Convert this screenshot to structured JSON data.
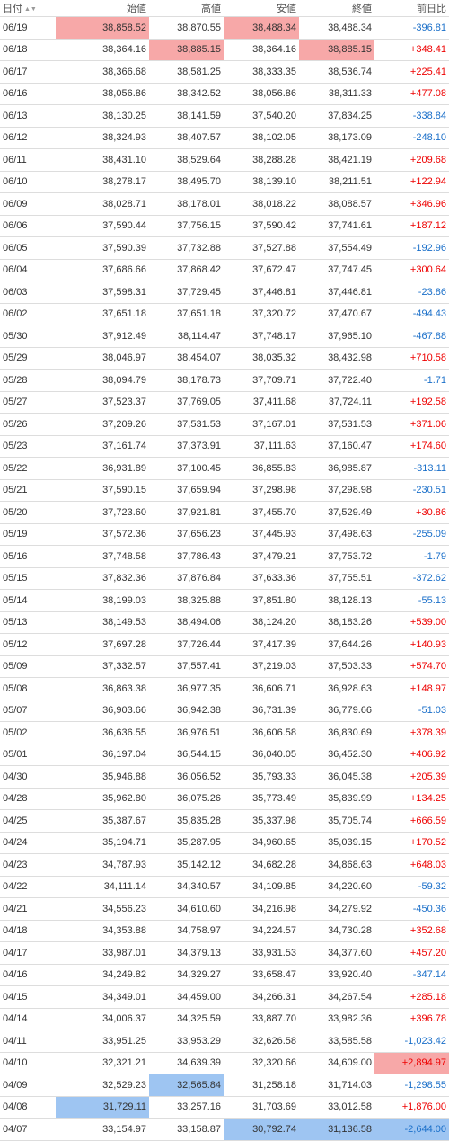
{
  "header": {
    "date": "日付",
    "sort_icon": "sort-asc-desc-icon",
    "open": "始値",
    "high": "高値",
    "low": "安値",
    "close": "終値",
    "change": "前日比"
  },
  "colors": {
    "up": "#ee0000",
    "down": "#1a6fc9",
    "highlight_high": "#f7a8a8",
    "highlight_low": "#9ec5f2"
  },
  "rows": [
    {
      "date": "06/19",
      "open": "38,858.52",
      "high": "38,870.55",
      "low": "38,488.34",
      "close": "38,488.34",
      "change": "-396.81",
      "dir": "down",
      "hl": [
        "open",
        "low"
      ],
      "hlColor": "hi"
    },
    {
      "date": "06/18",
      "open": "38,364.16",
      "high": "38,885.15",
      "low": "38,364.16",
      "close": "38,885.15",
      "change": "+348.41",
      "dir": "up",
      "hl": [
        "high",
        "close"
      ],
      "hlColor": "hi"
    },
    {
      "date": "06/17",
      "open": "38,366.68",
      "high": "38,581.25",
      "low": "38,333.35",
      "close": "38,536.74",
      "change": "+225.41",
      "dir": "up"
    },
    {
      "date": "06/16",
      "open": "38,056.86",
      "high": "38,342.52",
      "low": "38,056.86",
      "close": "38,311.33",
      "change": "+477.08",
      "dir": "up"
    },
    {
      "date": "06/13",
      "open": "38,130.25",
      "high": "38,141.59",
      "low": "37,540.20",
      "close": "37,834.25",
      "change": "-338.84",
      "dir": "down"
    },
    {
      "date": "06/12",
      "open": "38,324.93",
      "high": "38,407.57",
      "low": "38,102.05",
      "close": "38,173.09",
      "change": "-248.10",
      "dir": "down"
    },
    {
      "date": "06/11",
      "open": "38,431.10",
      "high": "38,529.64",
      "low": "38,288.28",
      "close": "38,421.19",
      "change": "+209.68",
      "dir": "up"
    },
    {
      "date": "06/10",
      "open": "38,278.17",
      "high": "38,495.70",
      "low": "38,139.10",
      "close": "38,211.51",
      "change": "+122.94",
      "dir": "up"
    },
    {
      "date": "06/09",
      "open": "38,028.71",
      "high": "38,178.01",
      "low": "38,018.22",
      "close": "38,088.57",
      "change": "+346.96",
      "dir": "up"
    },
    {
      "date": "06/06",
      "open": "37,590.44",
      "high": "37,756.15",
      "low": "37,590.42",
      "close": "37,741.61",
      "change": "+187.12",
      "dir": "up"
    },
    {
      "date": "06/05",
      "open": "37,590.39",
      "high": "37,732.88",
      "low": "37,527.88",
      "close": "37,554.49",
      "change": "-192.96",
      "dir": "down"
    },
    {
      "date": "06/04",
      "open": "37,686.66",
      "high": "37,868.42",
      "low": "37,672.47",
      "close": "37,747.45",
      "change": "+300.64",
      "dir": "up"
    },
    {
      "date": "06/03",
      "open": "37,598.31",
      "high": "37,729.45",
      "low": "37,446.81",
      "close": "37,446.81",
      "change": "-23.86",
      "dir": "down"
    },
    {
      "date": "06/02",
      "open": "37,651.18",
      "high": "37,651.18",
      "low": "37,320.72",
      "close": "37,470.67",
      "change": "-494.43",
      "dir": "down"
    },
    {
      "date": "05/30",
      "open": "37,912.49",
      "high": "38,114.47",
      "low": "37,748.17",
      "close": "37,965.10",
      "change": "-467.88",
      "dir": "down"
    },
    {
      "date": "05/29",
      "open": "38,046.97",
      "high": "38,454.07",
      "low": "38,035.32",
      "close": "38,432.98",
      "change": "+710.58",
      "dir": "up"
    },
    {
      "date": "05/28",
      "open": "38,094.79",
      "high": "38,178.73",
      "low": "37,709.71",
      "close": "37,722.40",
      "change": "-1.71",
      "dir": "down"
    },
    {
      "date": "05/27",
      "open": "37,523.37",
      "high": "37,769.05",
      "low": "37,411.68",
      "close": "37,724.11",
      "change": "+192.58",
      "dir": "up"
    },
    {
      "date": "05/26",
      "open": "37,209.26",
      "high": "37,531.53",
      "low": "37,167.01",
      "close": "37,531.53",
      "change": "+371.06",
      "dir": "up"
    },
    {
      "date": "05/23",
      "open": "37,161.74",
      "high": "37,373.91",
      "low": "37,111.63",
      "close": "37,160.47",
      "change": "+174.60",
      "dir": "up"
    },
    {
      "date": "05/22",
      "open": "36,931.89",
      "high": "37,100.45",
      "low": "36,855.83",
      "close": "36,985.87",
      "change": "-313.11",
      "dir": "down"
    },
    {
      "date": "05/21",
      "open": "37,590.15",
      "high": "37,659.94",
      "low": "37,298.98",
      "close": "37,298.98",
      "change": "-230.51",
      "dir": "down"
    },
    {
      "date": "05/20",
      "open": "37,723.60",
      "high": "37,921.81",
      "low": "37,455.70",
      "close": "37,529.49",
      "change": "+30.86",
      "dir": "up"
    },
    {
      "date": "05/19",
      "open": "37,572.36",
      "high": "37,656.23",
      "low": "37,445.93",
      "close": "37,498.63",
      "change": "-255.09",
      "dir": "down"
    },
    {
      "date": "05/16",
      "open": "37,748.58",
      "high": "37,786.43",
      "low": "37,479.21",
      "close": "37,753.72",
      "change": "-1.79",
      "dir": "down"
    },
    {
      "date": "05/15",
      "open": "37,832.36",
      "high": "37,876.84",
      "low": "37,633.36",
      "close": "37,755.51",
      "change": "-372.62",
      "dir": "down"
    },
    {
      "date": "05/14",
      "open": "38,199.03",
      "high": "38,325.88",
      "low": "37,851.80",
      "close": "38,128.13",
      "change": "-55.13",
      "dir": "down"
    },
    {
      "date": "05/13",
      "open": "38,149.53",
      "high": "38,494.06",
      "low": "38,124.20",
      "close": "38,183.26",
      "change": "+539.00",
      "dir": "up"
    },
    {
      "date": "05/12",
      "open": "37,697.28",
      "high": "37,726.44",
      "low": "37,417.39",
      "close": "37,644.26",
      "change": "+140.93",
      "dir": "up"
    },
    {
      "date": "05/09",
      "open": "37,332.57",
      "high": "37,557.41",
      "low": "37,219.03",
      "close": "37,503.33",
      "change": "+574.70",
      "dir": "up"
    },
    {
      "date": "05/08",
      "open": "36,863.38",
      "high": "36,977.35",
      "low": "36,606.71",
      "close": "36,928.63",
      "change": "+148.97",
      "dir": "up"
    },
    {
      "date": "05/07",
      "open": "36,903.66",
      "high": "36,942.38",
      "low": "36,731.39",
      "close": "36,779.66",
      "change": "-51.03",
      "dir": "down"
    },
    {
      "date": "05/02",
      "open": "36,636.55",
      "high": "36,976.51",
      "low": "36,606.58",
      "close": "36,830.69",
      "change": "+378.39",
      "dir": "up"
    },
    {
      "date": "05/01",
      "open": "36,197.04",
      "high": "36,544.15",
      "low": "36,040.05",
      "close": "36,452.30",
      "change": "+406.92",
      "dir": "up"
    },
    {
      "date": "04/30",
      "open": "35,946.88",
      "high": "36,056.52",
      "low": "35,793.33",
      "close": "36,045.38",
      "change": "+205.39",
      "dir": "up"
    },
    {
      "date": "04/28",
      "open": "35,962.80",
      "high": "36,075.26",
      "low": "35,773.49",
      "close": "35,839.99",
      "change": "+134.25",
      "dir": "up"
    },
    {
      "date": "04/25",
      "open": "35,387.67",
      "high": "35,835.28",
      "low": "35,337.98",
      "close": "35,705.74",
      "change": "+666.59",
      "dir": "up"
    },
    {
      "date": "04/24",
      "open": "35,194.71",
      "high": "35,287.95",
      "low": "34,960.65",
      "close": "35,039.15",
      "change": "+170.52",
      "dir": "up"
    },
    {
      "date": "04/23",
      "open": "34,787.93",
      "high": "35,142.12",
      "low": "34,682.28",
      "close": "34,868.63",
      "change": "+648.03",
      "dir": "up"
    },
    {
      "date": "04/22",
      "open": "34,111.14",
      "high": "34,340.57",
      "low": "34,109.85",
      "close": "34,220.60",
      "change": "-59.32",
      "dir": "down"
    },
    {
      "date": "04/21",
      "open": "34,556.23",
      "high": "34,610.60",
      "low": "34,216.98",
      "close": "34,279.92",
      "change": "-450.36",
      "dir": "down"
    },
    {
      "date": "04/18",
      "open": "34,353.88",
      "high": "34,758.97",
      "low": "34,224.57",
      "close": "34,730.28",
      "change": "+352.68",
      "dir": "up"
    },
    {
      "date": "04/17",
      "open": "33,987.01",
      "high": "34,379.13",
      "low": "33,931.53",
      "close": "34,377.60",
      "change": "+457.20",
      "dir": "up"
    },
    {
      "date": "04/16",
      "open": "34,249.82",
      "high": "34,329.27",
      "low": "33,658.47",
      "close": "33,920.40",
      "change": "-347.14",
      "dir": "down"
    },
    {
      "date": "04/15",
      "open": "34,349.01",
      "high": "34,459.00",
      "low": "34,266.31",
      "close": "34,267.54",
      "change": "+285.18",
      "dir": "up"
    },
    {
      "date": "04/14",
      "open": "34,006.37",
      "high": "34,325.59",
      "low": "33,887.70",
      "close": "33,982.36",
      "change": "+396.78",
      "dir": "up"
    },
    {
      "date": "04/11",
      "open": "33,951.25",
      "high": "33,953.29",
      "low": "32,626.58",
      "close": "33,585.58",
      "change": "-1,023.42",
      "dir": "down"
    },
    {
      "date": "04/10",
      "open": "32,321.21",
      "high": "34,639.39",
      "low": "32,320.66",
      "close": "34,609.00",
      "change": "+2,894.97",
      "dir": "up",
      "hl": [
        "change"
      ],
      "hlColor": "hi"
    },
    {
      "date": "04/09",
      "open": "32,529.23",
      "high": "32,565.84",
      "low": "31,258.18",
      "close": "31,714.03",
      "change": "-1,298.55",
      "dir": "down",
      "hl": [
        "high"
      ],
      "hlColor": "lo"
    },
    {
      "date": "04/08",
      "open": "31,729.11",
      "high": "33,257.16",
      "low": "31,703.69",
      "close": "33,012.58",
      "change": "+1,876.00",
      "dir": "up",
      "hl": [
        "open"
      ],
      "hlColor": "lo"
    },
    {
      "date": "04/07",
      "open": "33,154.97",
      "high": "33,158.87",
      "low": "30,792.74",
      "close": "31,136.58",
      "change": "-2,644.00",
      "dir": "down",
      "hl": [
        "low",
        "close",
        "change"
      ],
      "hlColor": "lo"
    }
  ]
}
